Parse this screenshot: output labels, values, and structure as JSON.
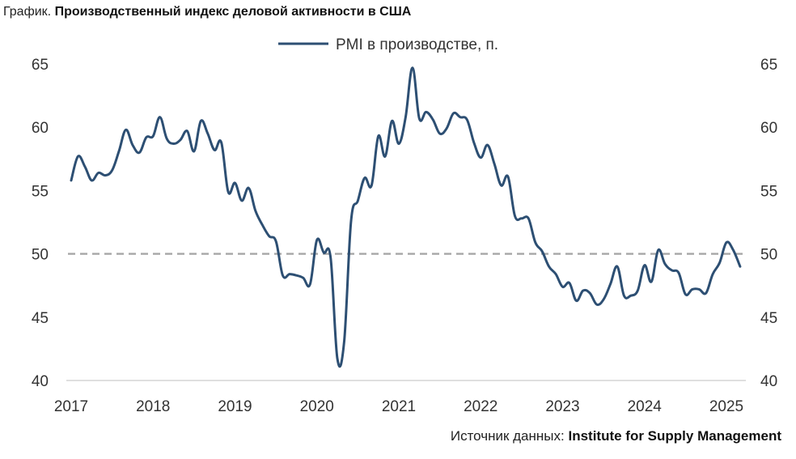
{
  "header": {
    "prefix": "График.",
    "title": "Производственный индекс деловой активности в США"
  },
  "footer": {
    "source_label": "Источник данных:",
    "source_name": "Institute for Supply Management"
  },
  "colors": {
    "series": "#2d4f73",
    "reference": "#a6a6a6",
    "axis": "#bfbfbf"
  },
  "chart_data": {
    "type": "line",
    "title": "Производственный индекс деловой активности в США",
    "xlabel": "",
    "ylabel": "",
    "xlim": [
      2017,
      2025.25
    ],
    "ylim": [
      40,
      65
    ],
    "yticks": [
      "40",
      "45",
      "50",
      "55",
      "60",
      "65"
    ],
    "xticks": [
      "2017",
      "2018",
      "2019",
      "2020",
      "2021",
      "2022",
      "2023",
      "2024",
      "2025"
    ],
    "grid": false,
    "legend": "top-center",
    "reference_line": {
      "y": 50,
      "style": "dashed"
    },
    "series": [
      {
        "name": "PMI в производстве, п.",
        "x": [
          2017.0,
          2017.083,
          2017.167,
          2017.25,
          2017.333,
          2017.417,
          2017.5,
          2017.583,
          2017.667,
          2017.75,
          2017.833,
          2017.917,
          2018.0,
          2018.083,
          2018.167,
          2018.25,
          2018.333,
          2018.417,
          2018.5,
          2018.583,
          2018.667,
          2018.75,
          2018.833,
          2018.917,
          2019.0,
          2019.083,
          2019.167,
          2019.25,
          2019.333,
          2019.417,
          2019.5,
          2019.583,
          2019.667,
          2019.75,
          2019.833,
          2019.917,
          2020.0,
          2020.083,
          2020.167,
          2020.25,
          2020.333,
          2020.417,
          2020.5,
          2020.583,
          2020.667,
          2020.75,
          2020.833,
          2020.917,
          2021.0,
          2021.083,
          2021.167,
          2021.25,
          2021.333,
          2021.417,
          2021.5,
          2021.583,
          2021.667,
          2021.75,
          2021.833,
          2021.917,
          2022.0,
          2022.083,
          2022.167,
          2022.25,
          2022.333,
          2022.417,
          2022.5,
          2022.583,
          2022.667,
          2022.75,
          2022.833,
          2022.917,
          2023.0,
          2023.083,
          2023.167,
          2023.25,
          2023.333,
          2023.417,
          2023.5,
          2023.583,
          2023.667,
          2023.75,
          2023.833,
          2023.917,
          2024.0,
          2024.083,
          2024.167,
          2024.25,
          2024.333,
          2024.417,
          2024.5,
          2024.583,
          2024.667,
          2024.75,
          2024.833,
          2024.917,
          2025.0,
          2025.083,
          2025.167
        ],
        "y": [
          55.8,
          57.7,
          56.9,
          55.8,
          56.4,
          56.2,
          56.6,
          58.1,
          59.8,
          58.6,
          58.0,
          59.2,
          59.3,
          60.8,
          59.1,
          58.7,
          59.0,
          59.7,
          58.1,
          60.5,
          59.5,
          58.2,
          58.8,
          54.9,
          55.6,
          54.2,
          55.2,
          53.4,
          52.3,
          51.4,
          51.0,
          48.3,
          48.4,
          48.3,
          48.1,
          47.6,
          51.1,
          50.1,
          49.7,
          41.7,
          43.1,
          52.6,
          54.2,
          56.0,
          55.4,
          59.3,
          57.7,
          60.5,
          58.7,
          60.8,
          64.7,
          60.7,
          61.2,
          60.6,
          59.5,
          59.9,
          61.1,
          60.8,
          60.6,
          58.8,
          57.6,
          58.6,
          57.1,
          55.4,
          56.1,
          53.0,
          52.8,
          52.8,
          50.9,
          50.2,
          49.0,
          48.4,
          47.4,
          47.7,
          46.3,
          47.1,
          46.9,
          46.0,
          46.4,
          47.6,
          49.0,
          46.7,
          46.7,
          47.1,
          49.1,
          47.8,
          50.3,
          49.2,
          48.7,
          48.5,
          46.8,
          47.2,
          47.2,
          46.9,
          48.4,
          49.3,
          50.9,
          50.3,
          49.0
        ]
      }
    ]
  }
}
